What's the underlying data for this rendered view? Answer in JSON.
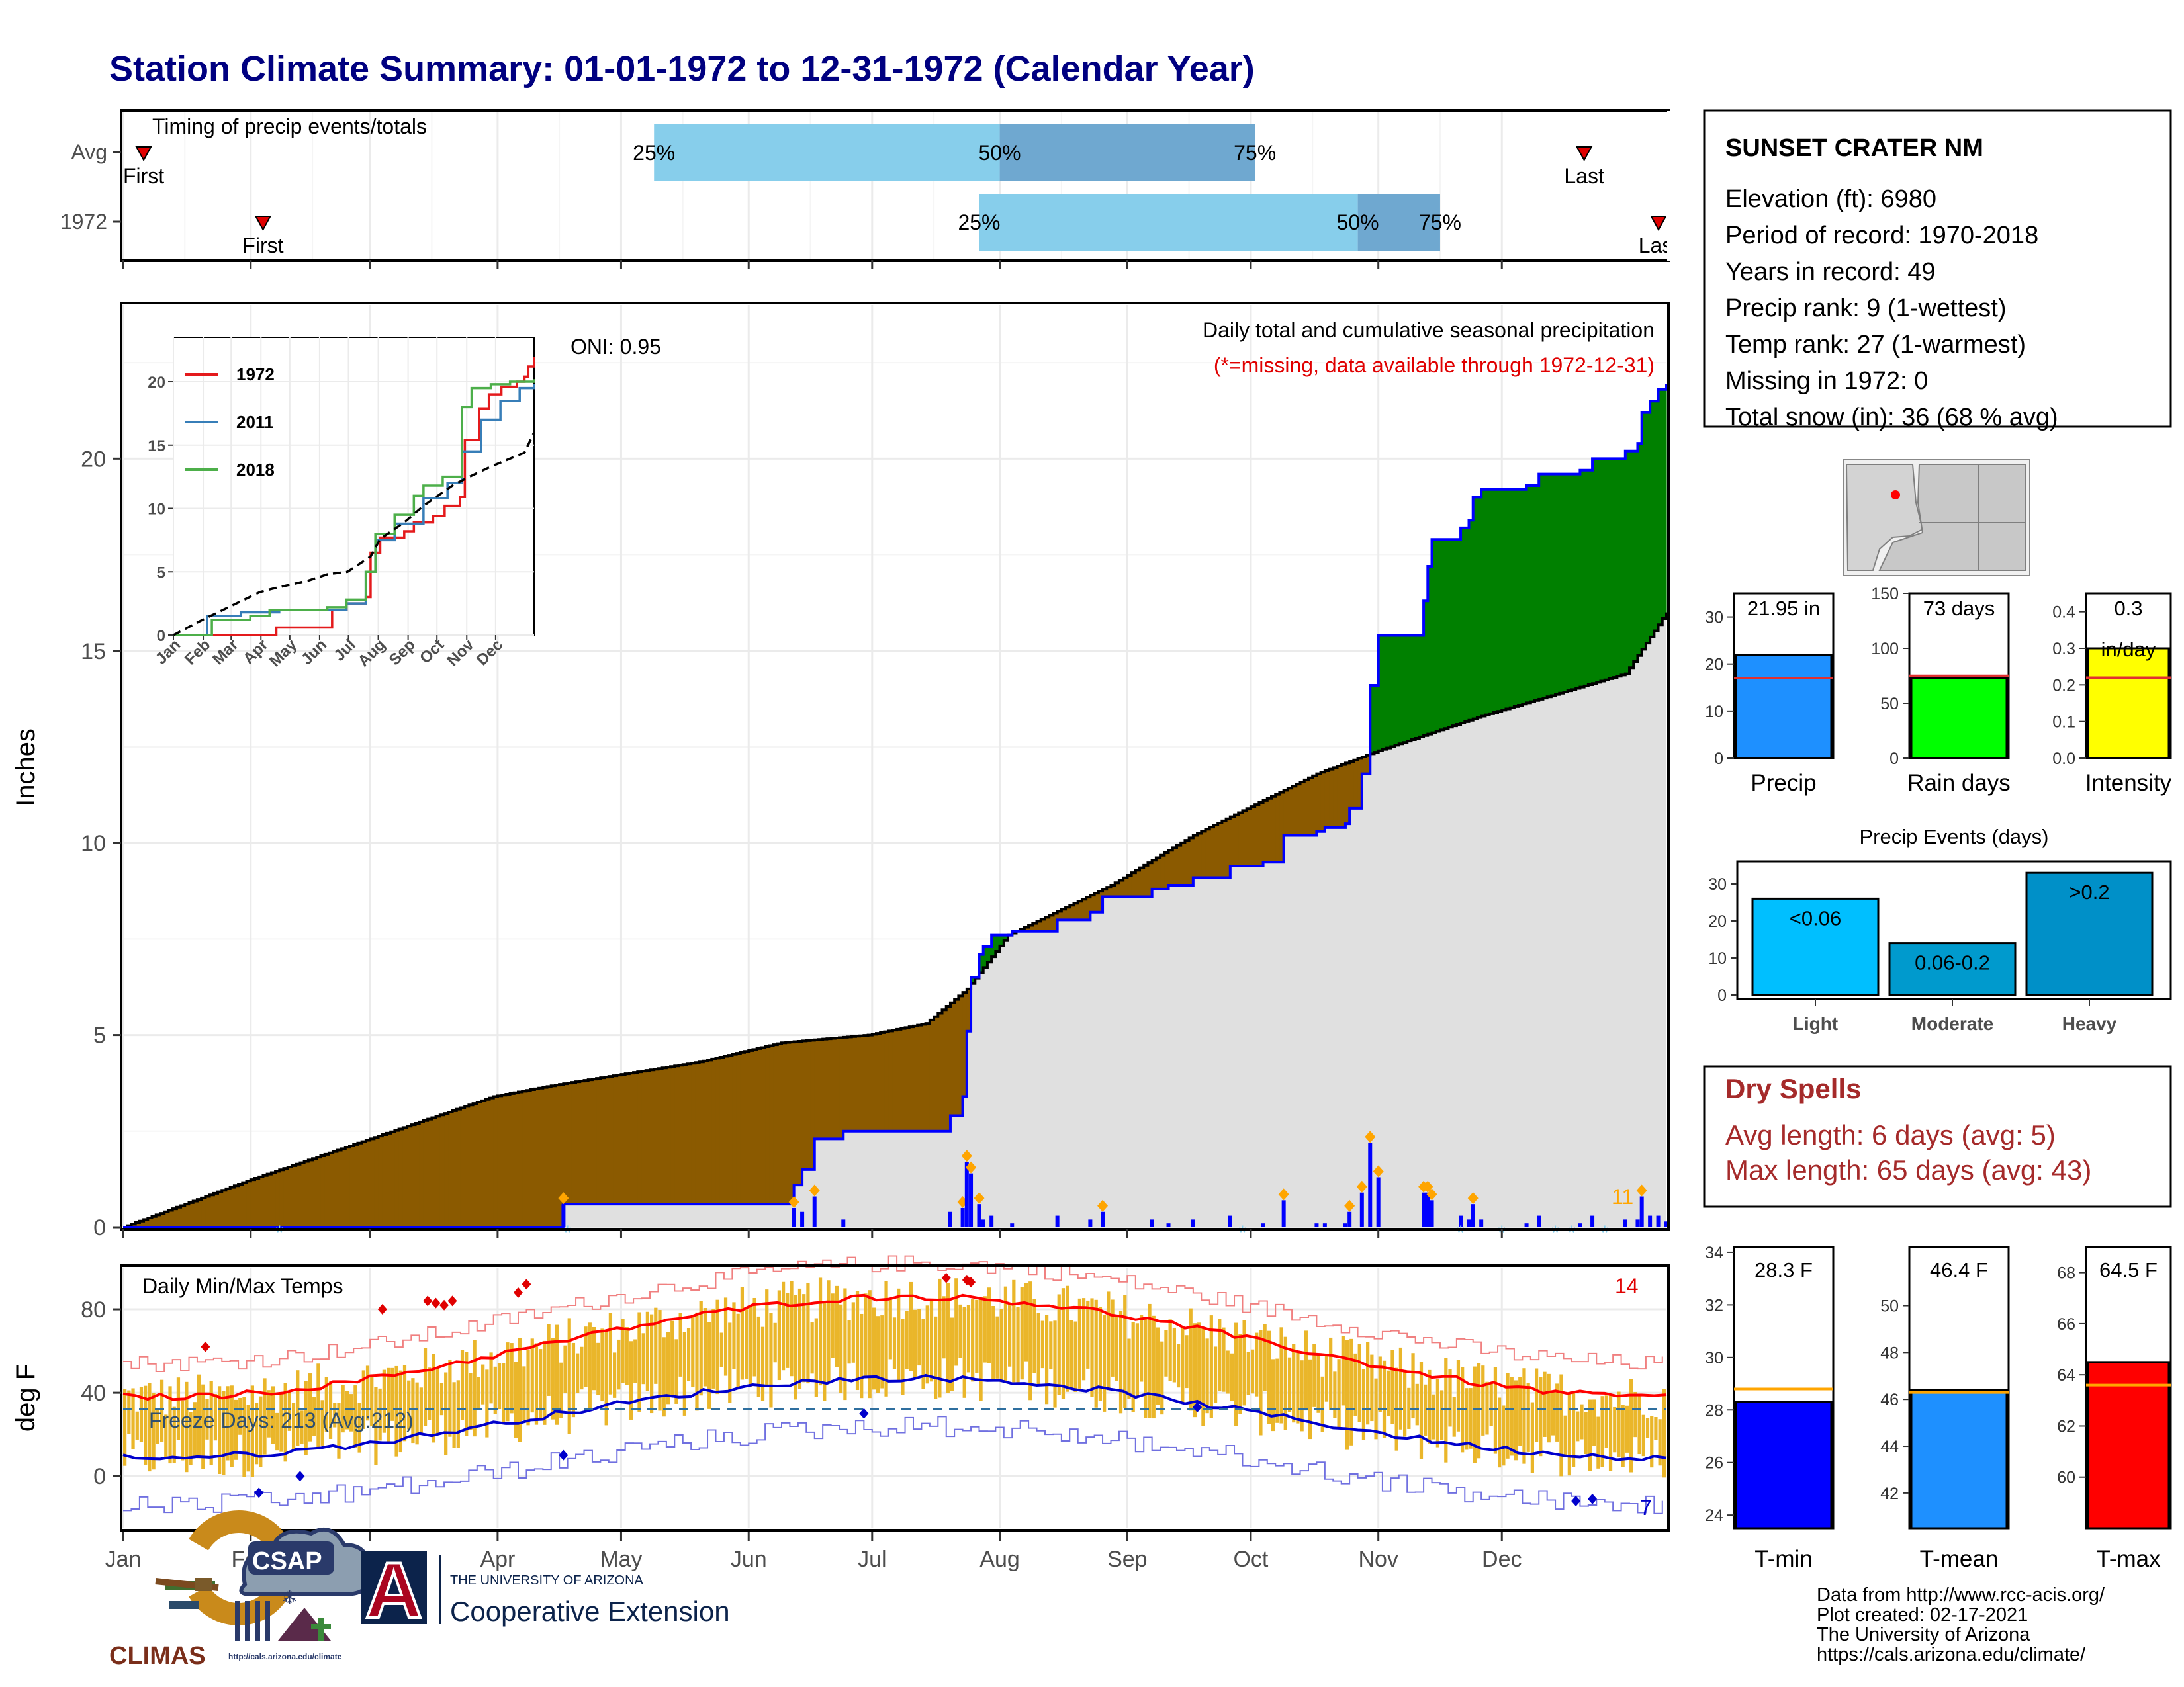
{
  "title": "Station Climate Summary: 01-01-1972 to 12-31-1972 (Calendar Year)",
  "months": [
    "Jan",
    "Feb",
    "Mar",
    "Apr",
    "May",
    "Jun",
    "Jul",
    "Aug",
    "Sep",
    "Oct",
    "Nov",
    "Dec"
  ],
  "timing": {
    "label": "Timing of precip events/totals",
    "first_label": "First",
    "last_label": "Last",
    "rows": [
      {
        "name": "Avg",
        "first": 5,
        "q25": 129,
        "q50": 213,
        "q75": 275,
        "last": 355
      },
      {
        "name": "1972",
        "first": 34,
        "q25": 208,
        "q50": 300,
        "q75": 320,
        "last": 375
      }
    ],
    "pct_labels": [
      "25%",
      "50%",
      "75%"
    ]
  },
  "precip": {
    "ylabel": "Inches",
    "ylim": [
      0,
      24
    ],
    "yticks": [
      0,
      5,
      10,
      15,
      20
    ],
    "title": "Daily total and cumulative seasonal precipitation",
    "missing_note": "(*=missing, data available through 1972-12-31)",
    "oni_label": "ONI: 0.95",
    "extreme_count": "11",
    "colors": {
      "above": "#008000",
      "below": "#8B5A00",
      "obs": "#0000FF",
      "fill": "#E0E0E0"
    },
    "cum_avg_knots": [
      [
        0,
        0
      ],
      [
        30,
        1.2
      ],
      [
        60,
        2.3
      ],
      [
        90,
        3.4
      ],
      [
        105,
        3.7
      ],
      [
        140,
        4.3
      ],
      [
        160,
        4.8
      ],
      [
        181,
        5.0
      ],
      [
        195,
        5.3
      ],
      [
        205,
        6.2
      ],
      [
        215,
        7.6
      ],
      [
        240,
        8.9
      ],
      [
        260,
        10.2
      ],
      [
        290,
        11.8
      ],
      [
        305,
        12.4
      ],
      [
        330,
        13.3
      ],
      [
        365,
        14.4
      ],
      [
        375,
        16.0
      ]
    ],
    "cum_obs_steps": [
      [
        0,
        0
      ],
      [
        106,
        0.0
      ],
      [
        107,
        0.6
      ],
      [
        162,
        0.6
      ],
      [
        163,
        1.1
      ],
      [
        165,
        1.5
      ],
      [
        168,
        2.3
      ],
      [
        175,
        2.5
      ],
      [
        200,
        2.5
      ],
      [
        201,
        2.9
      ],
      [
        204,
        3.4
      ],
      [
        205,
        5.1
      ],
      [
        206,
        6.5
      ],
      [
        208,
        7.1
      ],
      [
        209,
        7.3
      ],
      [
        211,
        7.6
      ],
      [
        216,
        7.7
      ],
      [
        226,
        7.7
      ],
      [
        227,
        8.0
      ],
      [
        235,
        8.2
      ],
      [
        238,
        8.6
      ],
      [
        250,
        8.8
      ],
      [
        254,
        8.9
      ],
      [
        260,
        9.1
      ],
      [
        269,
        9.4
      ],
      [
        277,
        9.5
      ],
      [
        282,
        10.2
      ],
      [
        290,
        10.3
      ],
      [
        292,
        10.4
      ],
      [
        297,
        10.5
      ],
      [
        298,
        10.9
      ],
      [
        301,
        11.8
      ],
      [
        303,
        14.1
      ],
      [
        305,
        15.4
      ],
      [
        316,
        16.3
      ],
      [
        317,
        17.2
      ],
      [
        318,
        17.9
      ],
      [
        325,
        18.2
      ],
      [
        327,
        18.4
      ],
      [
        328,
        19.0
      ],
      [
        330,
        19.2
      ],
      [
        341,
        19.3
      ],
      [
        344,
        19.6
      ],
      [
        353,
        19.6
      ],
      [
        354,
        19.7
      ],
      [
        357,
        20.0
      ],
      [
        365,
        20.2
      ],
      [
        368,
        20.4
      ],
      [
        369,
        21.2
      ],
      [
        371,
        21.5
      ],
      [
        373,
        21.8
      ],
      [
        375,
        21.95
      ]
    ]
  },
  "inset": {
    "legend": [
      {
        "name": "1972",
        "color": "#E41A1C"
      },
      {
        "name": "2011",
        "color": "#377EB8"
      },
      {
        "name": "2018",
        "color": "#4DAF4A"
      }
    ],
    "ylim": [
      0,
      24
    ],
    "yticks": [
      0,
      5,
      10,
      15,
      20
    ],
    "series": [
      {
        "name": "1972",
        "color": "#E41A1C",
        "points": [
          [
            0,
            0
          ],
          [
            90,
            0
          ],
          [
            107,
            0.6
          ],
          [
            160,
            0.6
          ],
          [
            165,
            2.0
          ],
          [
            180,
            2.5
          ],
          [
            200,
            3.0
          ],
          [
            205,
            6.5
          ],
          [
            215,
            7.7
          ],
          [
            240,
            8.2
          ],
          [
            250,
            8.9
          ],
          [
            270,
            9.4
          ],
          [
            282,
            10.2
          ],
          [
            298,
            10.9
          ],
          [
            303,
            15.4
          ],
          [
            318,
            17.9
          ],
          [
            328,
            19.0
          ],
          [
            341,
            19.6
          ],
          [
            357,
            20.0
          ],
          [
            365,
            20.4
          ],
          [
            369,
            21.2
          ],
          [
            375,
            21.95
          ]
        ]
      },
      {
        "name": "2011",
        "color": "#377EB8",
        "points": [
          [
            0,
            0
          ],
          [
            30,
            0
          ],
          [
            35,
            1.5
          ],
          [
            70,
            1.8
          ],
          [
            110,
            2.0
          ],
          [
            160,
            2.0
          ],
          [
            180,
            2.5
          ],
          [
            200,
            5.0
          ],
          [
            210,
            7.5
          ],
          [
            230,
            8.8
          ],
          [
            260,
            10.8
          ],
          [
            285,
            12.0
          ],
          [
            300,
            14.5
          ],
          [
            320,
            17.0
          ],
          [
            340,
            18.5
          ],
          [
            360,
            19.5
          ],
          [
            375,
            19.8
          ]
        ]
      },
      {
        "name": "2018",
        "color": "#4DAF4A",
        "points": [
          [
            0,
            0
          ],
          [
            30,
            0
          ],
          [
            40,
            1.2
          ],
          [
            80,
            1.5
          ],
          [
            100,
            2.0
          ],
          [
            160,
            2.2
          ],
          [
            180,
            2.8
          ],
          [
            200,
            5.0
          ],
          [
            210,
            8.0
          ],
          [
            230,
            9.5
          ],
          [
            250,
            11.0
          ],
          [
            260,
            11.8
          ],
          [
            280,
            12.5
          ],
          [
            300,
            18.0
          ],
          [
            310,
            19.5
          ],
          [
            330,
            19.8
          ],
          [
            350,
            20.0
          ],
          [
            375,
            20.2
          ]
        ]
      },
      {
        "name": "avg",
        "color": "#000000",
        "points": [
          [
            0,
            0
          ],
          [
            30,
            1.2
          ],
          [
            60,
            2.3
          ],
          [
            90,
            3.4
          ],
          [
            105,
            3.7
          ],
          [
            140,
            4.3
          ],
          [
            160,
            4.8
          ],
          [
            181,
            5.0
          ],
          [
            205,
            6.2
          ],
          [
            215,
            7.6
          ],
          [
            240,
            8.9
          ],
          [
            260,
            10.2
          ],
          [
            290,
            11.8
          ],
          [
            305,
            12.4
          ],
          [
            330,
            13.3
          ],
          [
            365,
            14.4
          ],
          [
            375,
            16.0
          ]
        ]
      }
    ]
  },
  "temps": {
    "ylabel": "deg F",
    "title": "Daily Min/Max Temps",
    "yticks": [
      0,
      40,
      80
    ],
    "ylim": [
      -25,
      100
    ],
    "freeze_label": "Freeze Days: 213 (Avg:212)",
    "freeze_line": 32,
    "hot_count": "14",
    "cold_count": "7"
  },
  "station": {
    "name": "SUNSET CRATER NM",
    "lines": [
      "Elevation (ft): 6980",
      "Period of record: 1970-2018",
      "Years in record: 49",
      "Precip rank: 9 (1-wettest)",
      "Temp rank: 27 (1-warmest)",
      "Missing in 1972: 0",
      "Total snow (in): 36 (68 % avg)"
    ]
  },
  "mini_bars": [
    {
      "label": "Precip",
      "value": 21.95,
      "value_label": "21.95 in",
      "avg": 17.0,
      "ymax": 35,
      "yticks": [
        0,
        10,
        20,
        30
      ],
      "color": "#1E90FF"
    },
    {
      "label": "Rain days",
      "value": 73,
      "value_label": "73 days",
      "avg": 75,
      "ymax": 150,
      "yticks": [
        0,
        50,
        100,
        150
      ],
      "color": "#00FF00"
    },
    {
      "label": "Intensity",
      "value": 0.3,
      "value_label": "0.3",
      "unit_label": "in/day",
      "avg": 0.22,
      "ymax": 0.45,
      "yticks": [
        0.0,
        0.1,
        0.2,
        0.3,
        0.4
      ],
      "color": "#FFFF00"
    }
  ],
  "events": {
    "title": "Precip Events (days)",
    "categories": [
      "Light",
      "Moderate",
      "Heavy"
    ],
    "values": [
      26,
      14,
      33
    ],
    "labels": [
      "<0.06",
      "0.06-0.2",
      ">0.2"
    ],
    "yticks": [
      0,
      10,
      20,
      30
    ],
    "colors": [
      "#00BFFF",
      "#009ACD",
      "#0090C8"
    ]
  },
  "dry_spells": {
    "title": "Dry Spells",
    "avg_line": "Avg length: 6 days (avg: 5)",
    "max_line": "Max length: 65 days (avg: 43)"
  },
  "temp_bars": [
    {
      "label": "T-min",
      "value": 28.3,
      "value_label": "28.3 F",
      "avg": 28.8,
      "ylim": [
        23.5,
        34.2
      ],
      "yticks": [
        24,
        26,
        28,
        30,
        32,
        34
      ],
      "color": "#0000FF"
    },
    {
      "label": "T-mean",
      "value": 46.4,
      "value_label": "46.4 F",
      "avg": 46.3,
      "ylim": [
        40.5,
        52.5
      ],
      "yticks": [
        42,
        44,
        46,
        48,
        50
      ],
      "color": "#1E90FF"
    },
    {
      "label": "T-max",
      "value": 64.5,
      "value_label": "64.5 F",
      "avg": 63.6,
      "ylim": [
        58.0,
        69.0
      ],
      "yticks": [
        60,
        62,
        64,
        66,
        68
      ],
      "color": "#FF0000"
    }
  ],
  "footer": {
    "lines": [
      "Data from http://www.rcc-acis.org/",
      "Plot created: 02-17-2021",
      "The University of Arizona",
      "https://cals.arizona.edu/climate/"
    ],
    "climas": "CLIMAS",
    "csap": "CSAP",
    "csap_url": "http://cals.arizona.edu/climate",
    "ua_small": "THE UNIVERSITY OF ARIZONA",
    "ua_big": "Cooperative Extension",
    "ua_letter": "A"
  }
}
